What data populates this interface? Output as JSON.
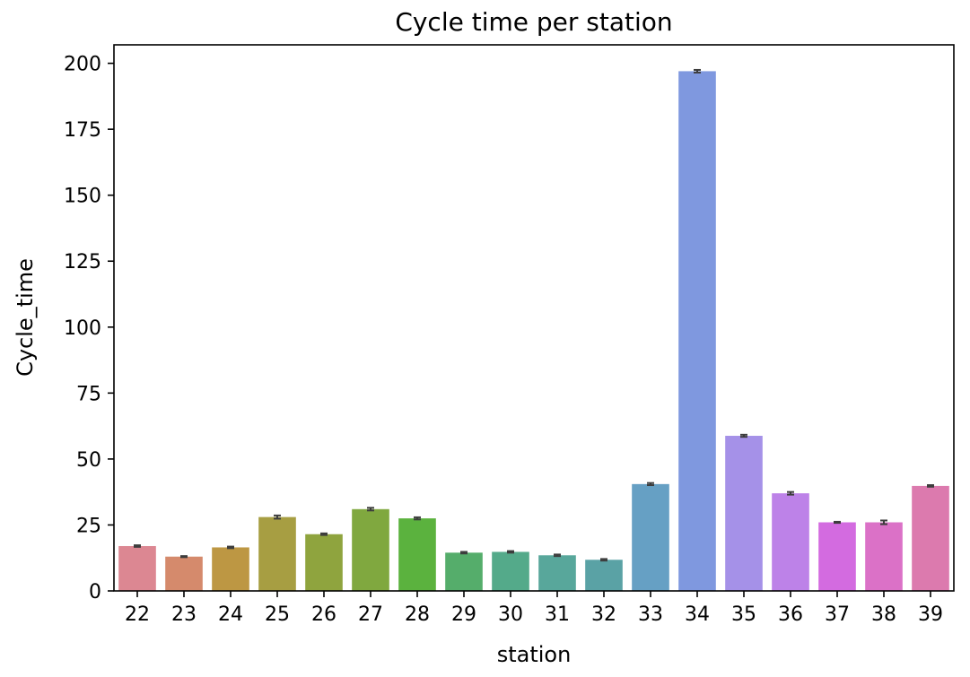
{
  "chart_data": {
    "type": "bar",
    "title": "Cycle time per station",
    "xlabel": "station",
    "ylabel": "Cycle_time",
    "categories": [
      "22",
      "23",
      "24",
      "25",
      "26",
      "27",
      "28",
      "29",
      "30",
      "31",
      "32",
      "33",
      "34",
      "35",
      "36",
      "37",
      "38",
      "39"
    ],
    "values": [
      17.0,
      13.0,
      16.5,
      28.0,
      21.5,
      31.0,
      27.5,
      14.5,
      14.8,
      13.5,
      11.8,
      40.5,
      197.0,
      58.8,
      37.0,
      26.0,
      26.0,
      39.8
    ],
    "errors": [
      0.3,
      0.2,
      0.3,
      0.6,
      0.3,
      0.5,
      0.4,
      0.3,
      0.3,
      0.3,
      0.3,
      0.4,
      0.5,
      0.4,
      0.5,
      0.2,
      0.7,
      0.3
    ],
    "colors": [
      "#dc8792",
      "#d58a6c",
      "#bd9743",
      "#a79e42",
      "#8fa43e",
      "#80a83f",
      "#5bb23e",
      "#55ad6b",
      "#54aa8a",
      "#58a79b",
      "#5aa2a5",
      "#66a0c4",
      "#7f98df",
      "#a591e8",
      "#bd82e8",
      "#d36be0",
      "#db71c7",
      "#dc7aae"
    ],
    "ylim": [
      0,
      207
    ],
    "yticks": [
      0,
      25,
      50,
      75,
      100,
      125,
      150,
      175,
      200
    ],
    "grid": false,
    "legend": "none"
  }
}
